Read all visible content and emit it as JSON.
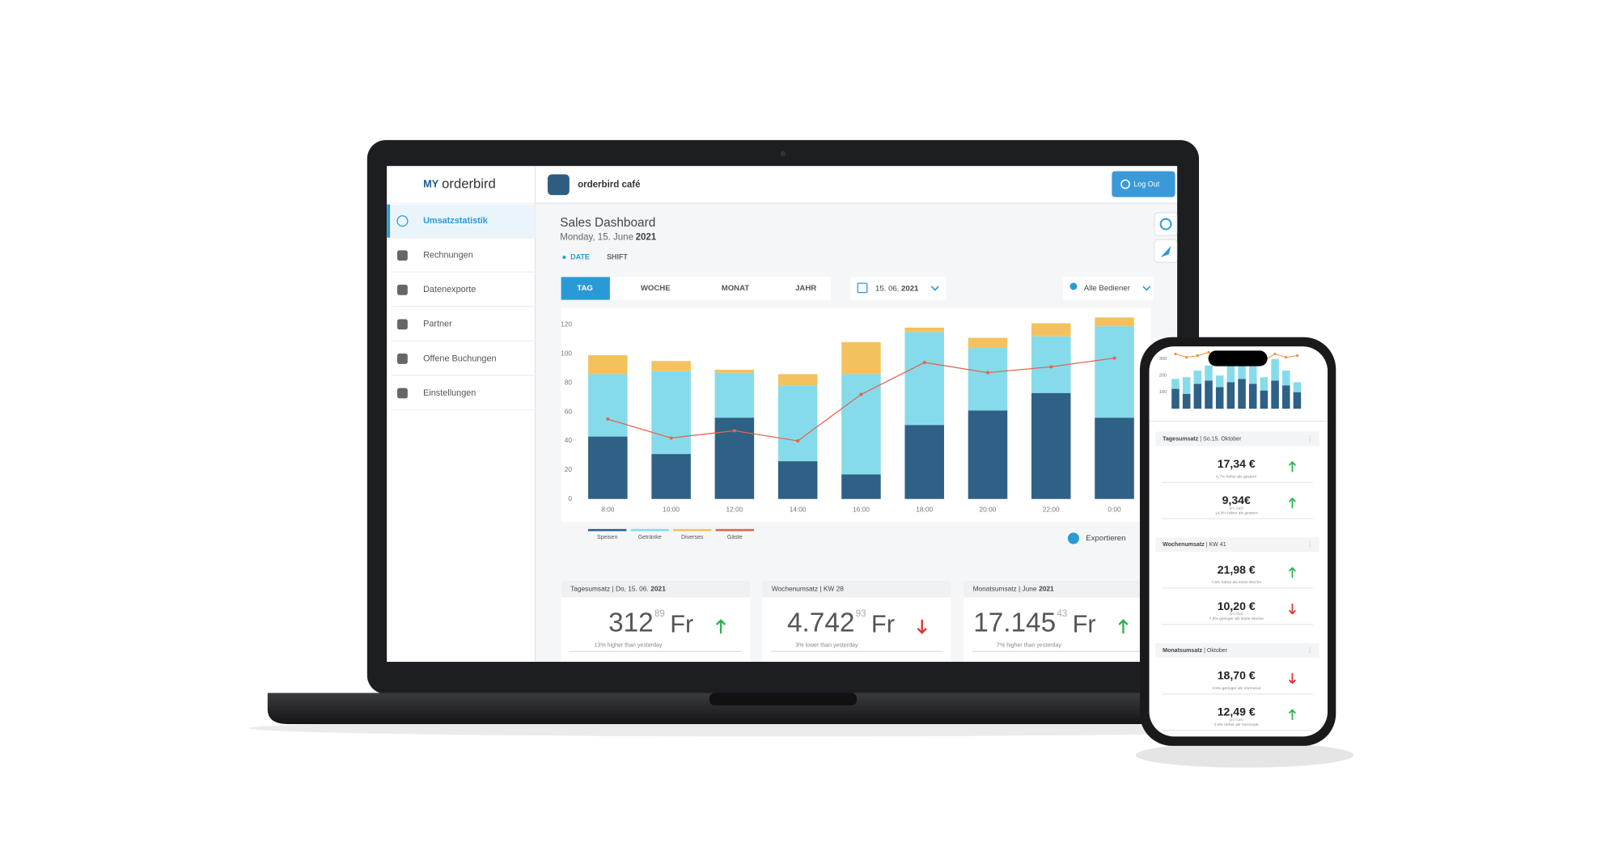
{
  "sidebar": {
    "logo_my": "MY",
    "logo_name": "orderbird",
    "items": [
      "Umsatzstatistik",
      "Rechnungen",
      "Datenexporte",
      "Partner",
      "Offene Buchungen",
      "Einstellungen"
    ]
  },
  "header": {
    "venue": "orderbird café",
    "logout": "Log Out"
  },
  "dashboard": {
    "title": "Sales Dashboard",
    "date": "Monday, 15. June",
    "year": "2021",
    "toggles": [
      "DATE",
      "SHIFT"
    ],
    "tabs": [
      "TAG",
      "WOCHE",
      "MONAT",
      "JAHR"
    ],
    "date_picker": "15. 06.",
    "date_picker_year": "2021",
    "staff_filter": "Alle Bediener",
    "export": "Exportieren",
    "chart": {
      "type": "bar",
      "stacked": true,
      "categories": [
        "8:00",
        "10:00",
        "12:00",
        "14:00",
        "16:00",
        "18:00",
        "20:00",
        "22:00",
        "0:00"
      ],
      "series": [
        {
          "name": "Speisen",
          "color": "#2f6186",
          "values": [
            43,
            31,
            56,
            26,
            17,
            51,
            61,
            73,
            56
          ]
        },
        {
          "name": "Getränke",
          "color": "#86dbea",
          "values": [
            43,
            57,
            31,
            52,
            69,
            64,
            43,
            39,
            63
          ]
        },
        {
          "name": "Diverses",
          "color": "#f3c25f",
          "values": [
            13,
            7,
            2,
            8,
            22,
            3,
            7,
            9,
            6
          ]
        },
        {
          "name": "Gäste",
          "color": "#e36552",
          "type": "line",
          "values": [
            55,
            42,
            47,
            40,
            72,
            94,
            87,
            91,
            97
          ]
        }
      ],
      "ylim": [
        0,
        130
      ],
      "yticks": [
        0,
        20,
        40,
        60,
        80,
        100,
        120
      ],
      "grid": false
    },
    "kpis": [
      {
        "label": "Tagesumsatz | Do, 15. 06.",
        "label_year": "2021",
        "value": "312",
        "decimals": "89",
        "currency": "Fr",
        "note": "13% higher than yesterday",
        "trend": "up"
      },
      {
        "label": "Wochenumsatz | KW 28",
        "value": "4.742",
        "decimals": "93",
        "currency": "Fr",
        "note": "3% lower than yesterday",
        "trend": "down"
      },
      {
        "label": "Monatsumsatz | June",
        "label_year": "2021",
        "value": "17.145",
        "decimals": "43",
        "currency": "Fr",
        "note": "7% higher than yesterday",
        "trend": "up"
      }
    ]
  },
  "phone": {
    "chart": {
      "type": "bar",
      "stacked": true,
      "series": [
        {
          "name": "Speisen",
          "color": "#2f6186",
          "values": [
            120,
            90,
            150,
            170,
            130,
            160,
            180,
            150,
            110,
            170,
            140,
            100
          ]
        },
        {
          "name": "Getränke",
          "color": "#86dbea",
          "values": [
            60,
            100,
            80,
            90,
            70,
            110,
            90,
            120,
            80,
            130,
            90,
            60
          ]
        },
        {
          "name": "Gäste",
          "color": "#f0963c",
          "type": "line",
          "values": [
            330,
            310,
            320,
            340,
            300,
            330,
            320,
            340,
            290,
            330,
            310,
            320
          ]
        }
      ],
      "ylim": [
        0,
        350
      ],
      "yticks": [
        100,
        200,
        300
      ],
      "grid": false
    },
    "sections": [
      {
        "label": "Tagesumsatz",
        "sub": " | So.15. Oktober",
        "items": [
          {
            "value": "17,34 €",
            "note": "6,7% höher als gestern",
            "trend": "up"
          },
          {
            "value": "9,34€",
            "sublabel": "pro Gast",
            "note": "14,3% höher als gestern",
            "trend": "up"
          }
        ]
      },
      {
        "label": "Wochenumsatz",
        "sub": " | KW 41",
        "items": [
          {
            "value": "21,98 €",
            "note": "7,6% höher als letzte Woche",
            "trend": "up"
          },
          {
            "value": "10,20 €",
            "sublabel": "pro Gast",
            "note": "7,5% geringer als letzte Woche",
            "trend": "down"
          }
        ]
      },
      {
        "label": "Monatsumsatz",
        "sub": " | Oktober",
        "items": [
          {
            "value": "18,70 €",
            "note": "3,5% geringer als Vormonat",
            "trend": "down"
          },
          {
            "value": "12,49 €",
            "sublabel": "pro Gast",
            "note": "2,9% höher als Vormonat",
            "trend": "up"
          }
        ]
      }
    ]
  }
}
